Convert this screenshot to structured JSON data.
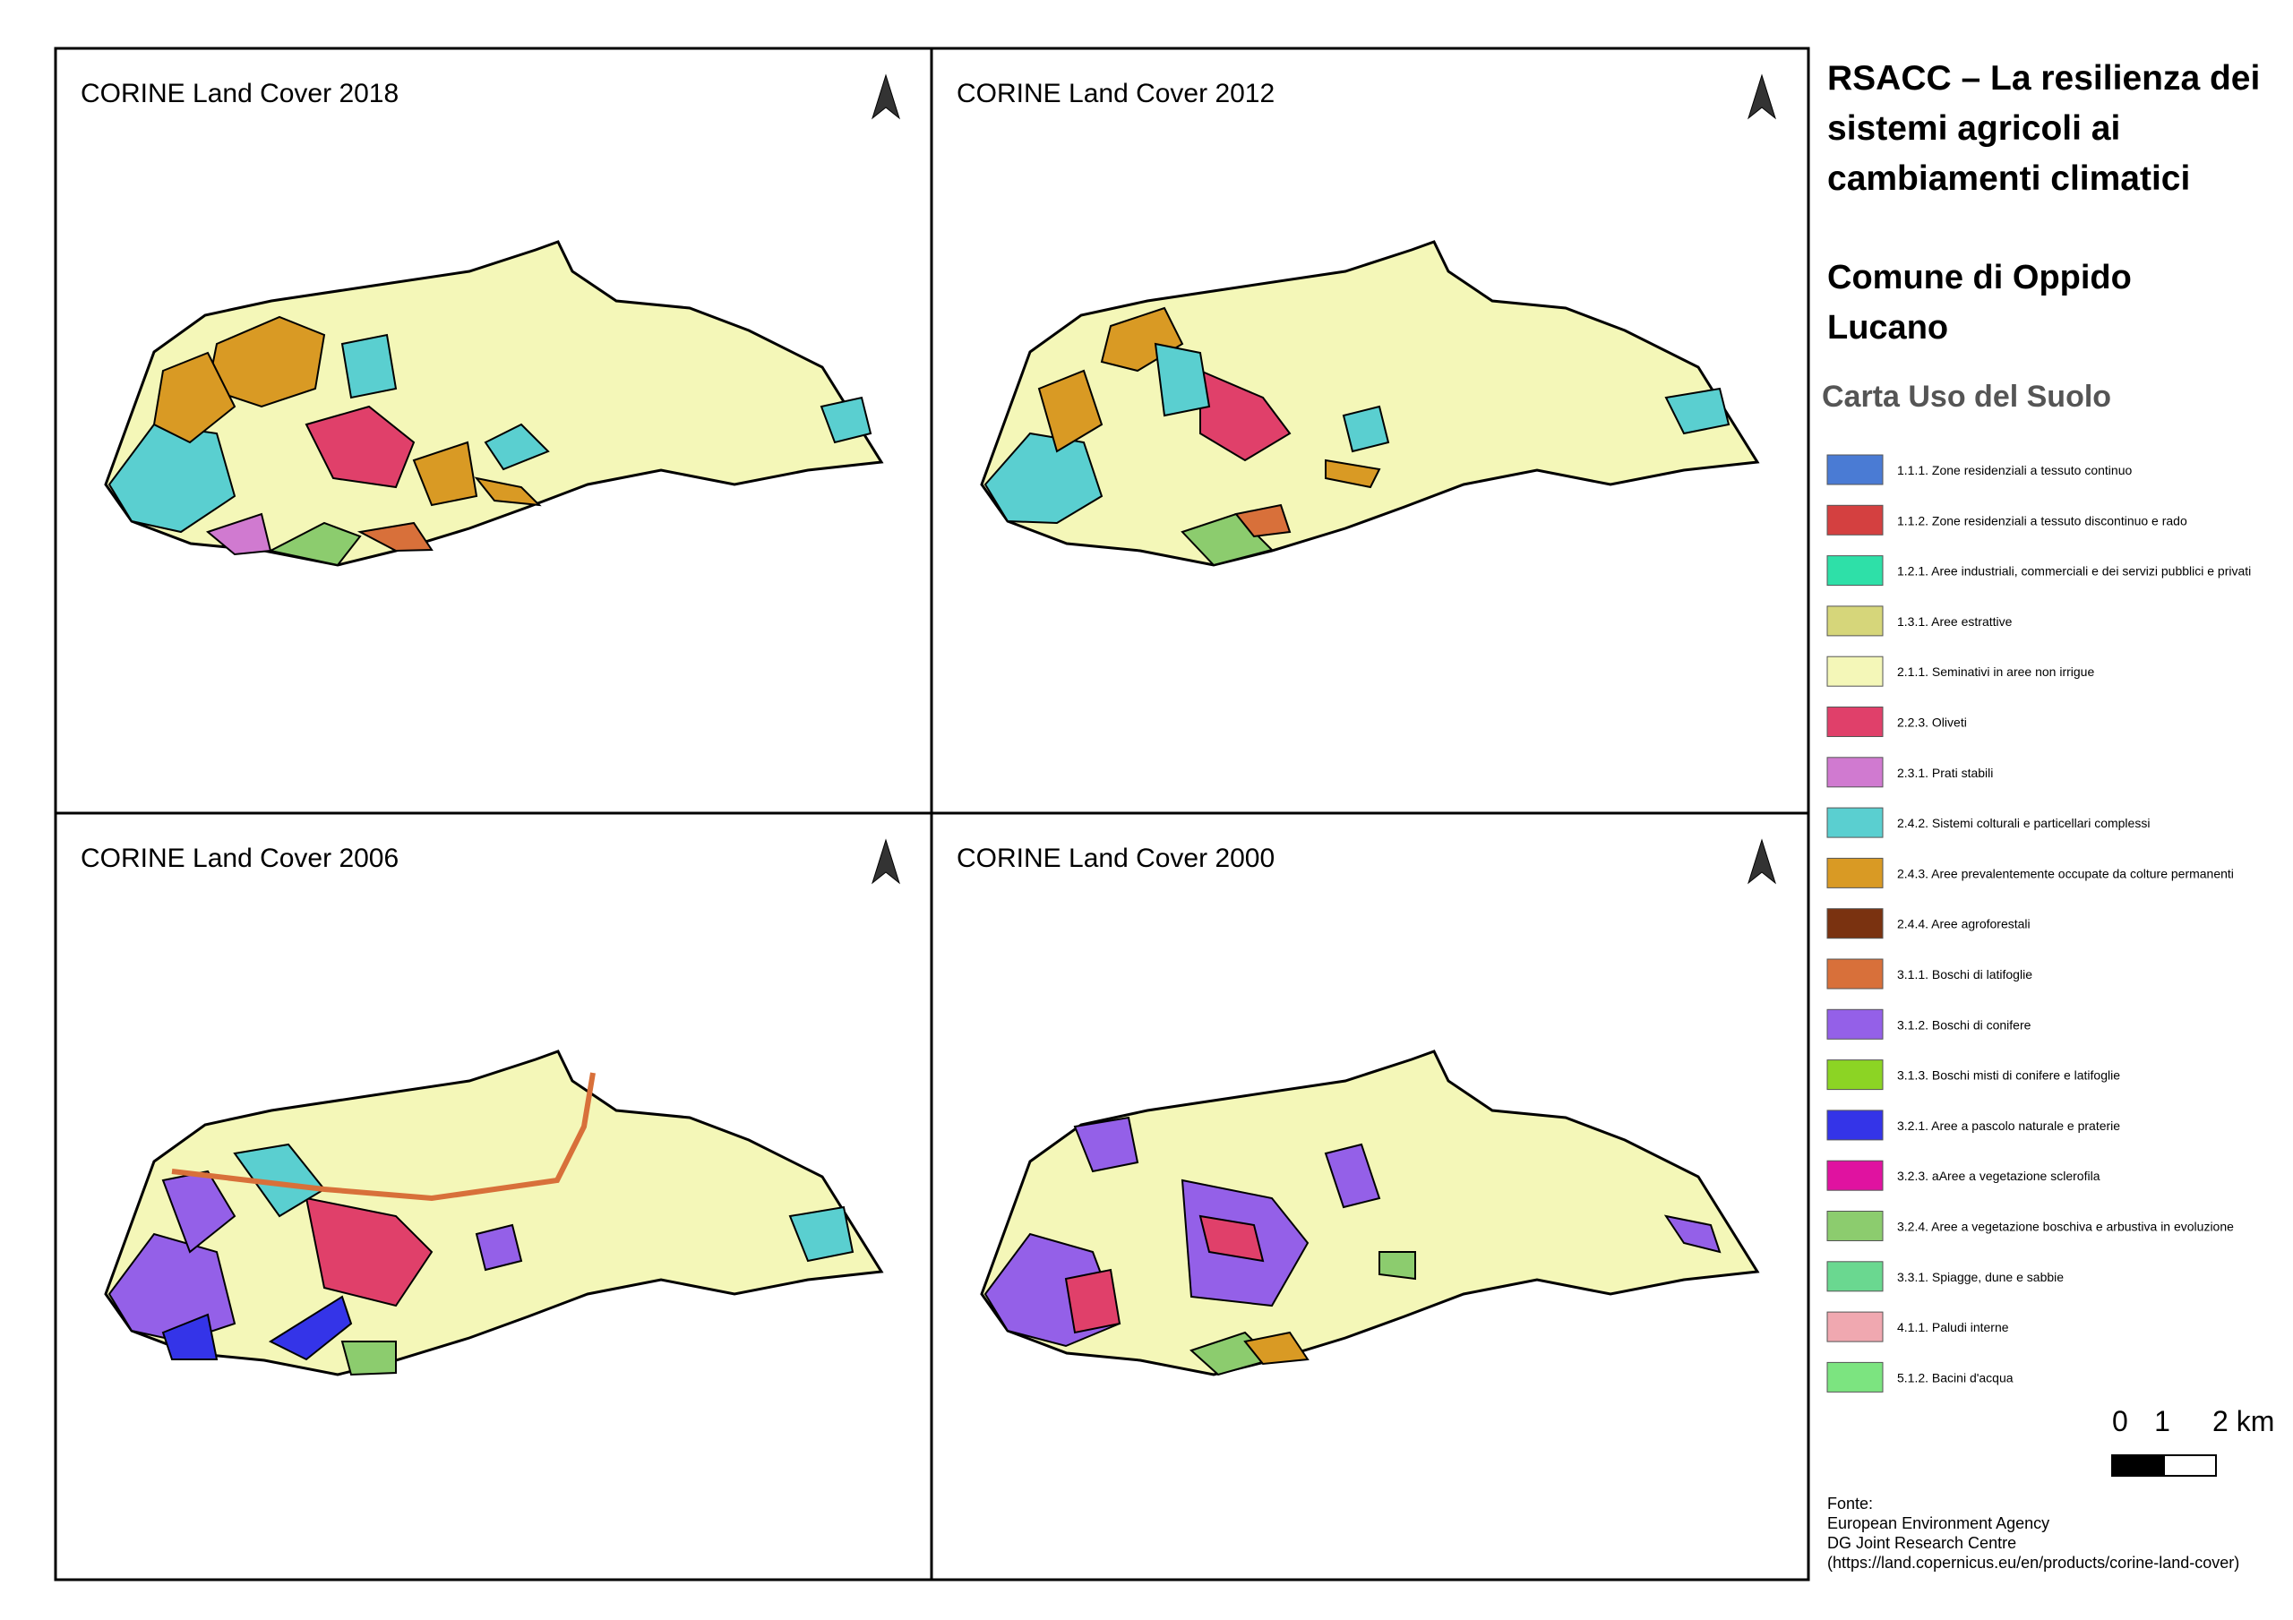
{
  "header": {
    "title": "RSACC – La resilienza dei sistemi agricoli ai cambiamenti climatici",
    "subtitle": "Comune di Oppido Lucano",
    "map_title": "Carta Uso del Suolo"
  },
  "panels": [
    {
      "title": "CORINE Land Cover 2018"
    },
    {
      "title": "CORINE Land Cover 2012"
    },
    {
      "title": "CORINE Land Cover 2006"
    },
    {
      "title": "CORINE Land Cover 2000"
    }
  ],
  "legend": [
    {
      "label": "1.1.1. Zone residenziali a tessuto continuo",
      "color": "#4a7bd4"
    },
    {
      "label": "1.1.2. Zone residenziali a tessuto discontinuo e rado",
      "color": "#d44040"
    },
    {
      "label": "1.2.1. Aree industriali, commerciali e dei servizi pubblici e privati",
      "color": "#2ee0a8"
    },
    {
      "label": "1.3.1. Aree estrattive",
      "color": "#d6d67a"
    },
    {
      "label": "2.1.1. Seminativi in aree non irrigue",
      "color": "#f4f7b8"
    },
    {
      "label": "2.2.3. Oliveti",
      "color": "#e0406a"
    },
    {
      "label": "2.3.1. Prati stabili",
      "color": "#d07ad0"
    },
    {
      "label": "2.4.2. Sistemi colturali e particellari complessi",
      "color": "#5acfd0"
    },
    {
      "label": "2.4.3. Aree prevalentemente occupate da colture permanenti",
      "color": "#d99a24"
    },
    {
      "label": "2.4.4. Aree agroforestali",
      "color": "#7a3210"
    },
    {
      "label": "3.1.1. Boschi di latifoglie",
      "color": "#d8703a"
    },
    {
      "label": "3.1.2. Boschi di conifere",
      "color": "#9460e8"
    },
    {
      "label": "3.1.3. Boschi misti di conifere e latifoglie",
      "color": "#8cd424"
    },
    {
      "label": "3.2.1. Aree a pascolo naturale e praterie",
      "color": "#3434e8"
    },
    {
      "label": "3.2.3. aAree a vegetazione sclerofila",
      "color": "#e012a0"
    },
    {
      "label": "3.2.4. Aree a vegetazione boschiva e arbustiva in evoluzione",
      "color": "#8ccc6e"
    },
    {
      "label": "3.3.1. Spiagge, dune e sabbie",
      "color": "#6ad890"
    },
    {
      "label": "4.1.1. Paludi interne",
      "color": "#f0a8b0"
    },
    {
      "label": "5.1.2. Bacini d'acqua",
      "color": "#7ce480"
    }
  ],
  "scale_bar": {
    "labels": [
      "0",
      "1",
      "2 km"
    ]
  },
  "source": {
    "lines": [
      "Fonte:",
      "European Environment Agency",
      "DG Joint Research Centre",
      "(https://land.copernicus.eu/en/products/corine-land-cover)"
    ]
  }
}
